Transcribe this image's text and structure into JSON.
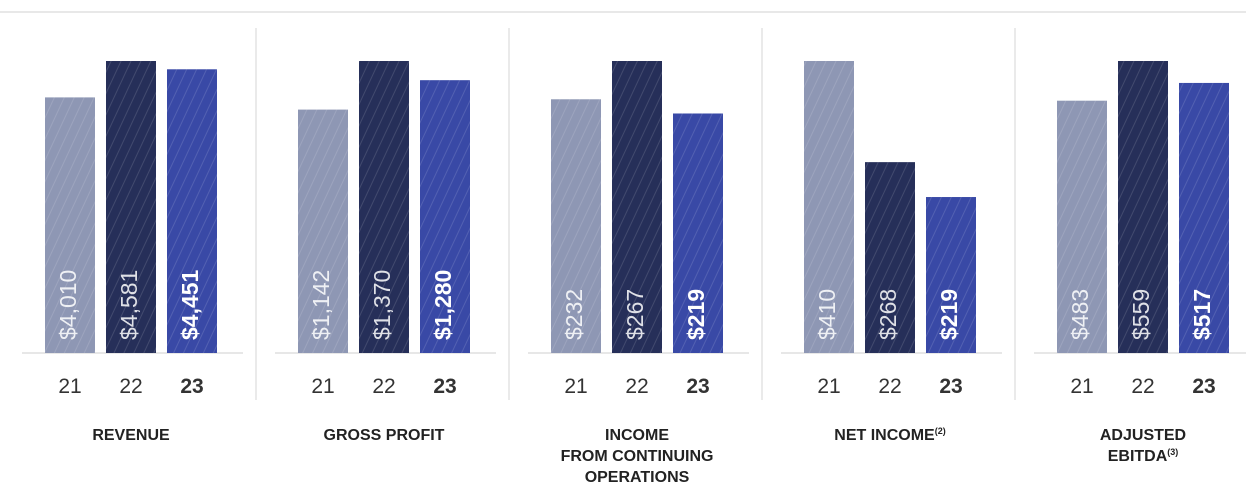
{
  "chart_data": [
    {
      "type": "bar",
      "title_lines": [
        "REVENUE"
      ],
      "categories": [
        "21",
        "22",
        "23"
      ],
      "values": [
        4010,
        4581,
        4451
      ],
      "value_labels": [
        "$4,010",
        "$4,581",
        "$4,451"
      ],
      "colors": [
        "#8e97b4",
        "#262f59",
        "#3949a6"
      ]
    },
    {
      "type": "bar",
      "title_lines": [
        "GROSS PROFIT"
      ],
      "categories": [
        "21",
        "22",
        "23"
      ],
      "values": [
        1142,
        1370,
        1280
      ],
      "value_labels": [
        "$1,142",
        "$1,370",
        "$1,280"
      ],
      "colors": [
        "#8e97b4",
        "#262f59",
        "#3949a6"
      ]
    },
    {
      "type": "bar",
      "title_lines": [
        "INCOME",
        "FROM CONTINUING",
        "OPERATIONS"
      ],
      "categories": [
        "21",
        "22",
        "23"
      ],
      "values": [
        232,
        267,
        219
      ],
      "value_labels": [
        "$232",
        "$267",
        "$219"
      ],
      "colors": [
        "#8e97b4",
        "#262f59",
        "#3949a6"
      ]
    },
    {
      "type": "bar",
      "title_lines": [
        "NET INCOME"
      ],
      "footnote": "(2)",
      "categories": [
        "21",
        "22",
        "23"
      ],
      "values": [
        410,
        268,
        219
      ],
      "value_labels": [
        "$410",
        "$268",
        "$219"
      ],
      "colors": [
        "#8e97b4",
        "#262f59",
        "#3949a6"
      ]
    },
    {
      "type": "bar",
      "title_lines": [
        "ADJUSTED",
        "EBITDA"
      ],
      "footnote": "(3)",
      "categories": [
        "21",
        "22",
        "23"
      ],
      "values": [
        483,
        559,
        517
      ],
      "value_labels": [
        "$483",
        "$559",
        "$517"
      ],
      "colors": [
        "#8e97b4",
        "#262f59",
        "#3949a6"
      ]
    }
  ]
}
